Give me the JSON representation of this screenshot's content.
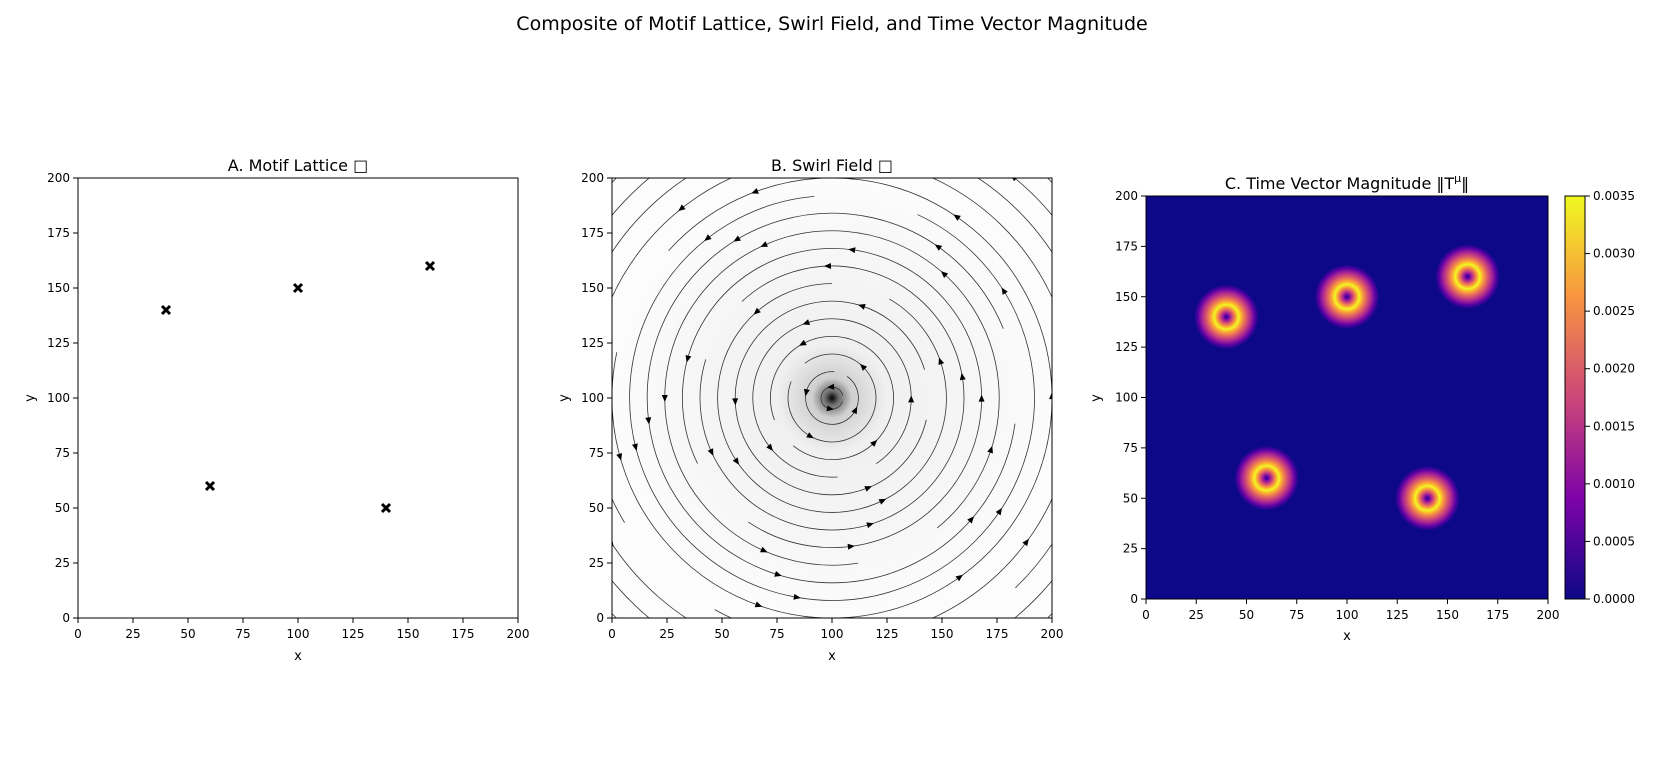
{
  "figure": {
    "suptitle": "Composite of Motif Lattice, Swirl Field, and Time Vector Magnitude"
  },
  "chart_data": [
    {
      "type": "scatter",
      "title": "A. Motif Lattice □",
      "xlabel": "x",
      "ylabel": "y",
      "xlim": [
        0,
        200
      ],
      "ylim": [
        0,
        200
      ],
      "xticks": [
        "0",
        "25",
        "50",
        "75",
        "100",
        "125",
        "150",
        "175",
        "200"
      ],
      "yticks": [
        "0",
        "25",
        "50",
        "75",
        "100",
        "125",
        "150",
        "175",
        "200"
      ],
      "marker": "x",
      "points": [
        {
          "x": 40,
          "y": 140
        },
        {
          "x": 60,
          "y": 60
        },
        {
          "x": 100,
          "y": 150
        },
        {
          "x": 140,
          "y": 50
        },
        {
          "x": 160,
          "y": 160
        }
      ],
      "grid": false
    },
    {
      "type": "streamplot",
      "title": "B. Swirl Field □",
      "xlabel": "x",
      "ylabel": "y",
      "xlim": [
        0,
        200
      ],
      "ylim": [
        0,
        200
      ],
      "xticks": [
        "0",
        "25",
        "50",
        "75",
        "100",
        "125",
        "150",
        "175",
        "200"
      ],
      "yticks": [
        "0",
        "25",
        "50",
        "75",
        "100",
        "125",
        "150",
        "175",
        "200"
      ],
      "center": {
        "x": 100,
        "y": 100
      },
      "rotation": "counterclockwise",
      "ring_radii": [
        5,
        12,
        20,
        28,
        36,
        44,
        52,
        60,
        68,
        76,
        84,
        92,
        100,
        110,
        120,
        130,
        140
      ],
      "background": "grayscale magnitude, dark at center",
      "grid": false
    },
    {
      "type": "heatmap",
      "title": "C. Time Vector Magnitude ‖T",
      "title_sup": "μ",
      "title_end": "‖",
      "xlabel": "x",
      "ylabel": "y",
      "xlim": [
        0,
        200
      ],
      "ylim": [
        0,
        200
      ],
      "xticks": [
        "0",
        "25",
        "50",
        "75",
        "100",
        "125",
        "150",
        "175",
        "200"
      ],
      "yticks": [
        "0",
        "25",
        "50",
        "75",
        "100",
        "125",
        "150",
        "175",
        "200"
      ],
      "colormap": "plasma",
      "colorbar_range": [
        0,
        0.0035
      ],
      "colorbar_ticks": [
        "0.0000",
        "0.0005",
        "0.0010",
        "0.0015",
        "0.0020",
        "0.0025",
        "0.0030",
        "0.0035"
      ],
      "peaks": [
        {
          "x": 40,
          "y": 140
        },
        {
          "x": 60,
          "y": 60
        },
        {
          "x": 100,
          "y": 150
        },
        {
          "x": 140,
          "y": 50
        },
        {
          "x": 160,
          "y": 160
        }
      ],
      "ring_radius": 5,
      "peak_value": 0.0035,
      "grid": false
    }
  ]
}
